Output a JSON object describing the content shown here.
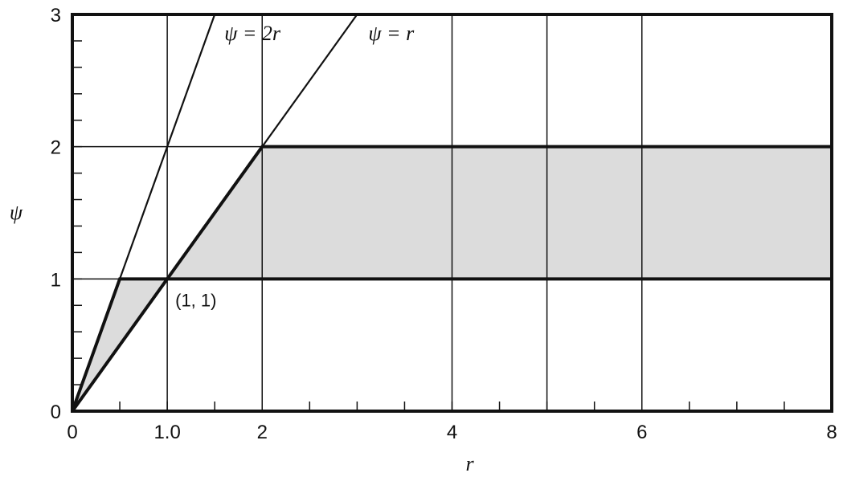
{
  "chart_data": {
    "type": "line",
    "xlabel": "r",
    "ylabel": "ψ",
    "xlim": [
      0,
      8
    ],
    "ylim": [
      0,
      3
    ],
    "xticks": [
      {
        "value": 0,
        "label": "0"
      },
      {
        "value": 1,
        "label": "1.0"
      },
      {
        "value": 2,
        "label": "2"
      },
      {
        "value": 4,
        "label": "4"
      },
      {
        "value": 6,
        "label": "6"
      },
      {
        "value": 8,
        "label": "8"
      }
    ],
    "yticks": [
      {
        "value": 0,
        "label": "0"
      },
      {
        "value": 1,
        "label": "1"
      },
      {
        "value": 2,
        "label": "2"
      },
      {
        "value": 3,
        "label": "3"
      }
    ],
    "x_minor_step": 0.5,
    "y_minor_step": 0.2,
    "grid_x": [
      1,
      2,
      4,
      5,
      6
    ],
    "grid_y": [
      1,
      2
    ],
    "series": [
      {
        "name": "ψ = 2r",
        "points": [
          [
            0,
            0
          ],
          [
            1.5,
            3
          ]
        ]
      },
      {
        "name": "ψ = r",
        "points": [
          [
            0,
            0
          ],
          [
            3,
            3
          ]
        ]
      }
    ],
    "shaded_regions": [
      {
        "points": [
          [
            0,
            0
          ],
          [
            0.5,
            1
          ],
          [
            1,
            1
          ]
        ]
      },
      {
        "points": [
          [
            1,
            1
          ],
          [
            2,
            2
          ],
          [
            8,
            2
          ],
          [
            8,
            1
          ]
        ]
      }
    ],
    "bold_boundary": [
      [
        0,
        0
      ],
      [
        0.5,
        1
      ],
      [
        8,
        1
      ]
    ],
    "bold_boundary_2": [
      [
        0,
        0
      ],
      [
        2,
        2
      ],
      [
        8,
        2
      ]
    ],
    "annotations": [
      {
        "text": "(1, 1)",
        "x": 1,
        "y": 1
      }
    ],
    "colors": {
      "shade": "#dcdcdc",
      "line": "#111111"
    },
    "grid": true
  }
}
